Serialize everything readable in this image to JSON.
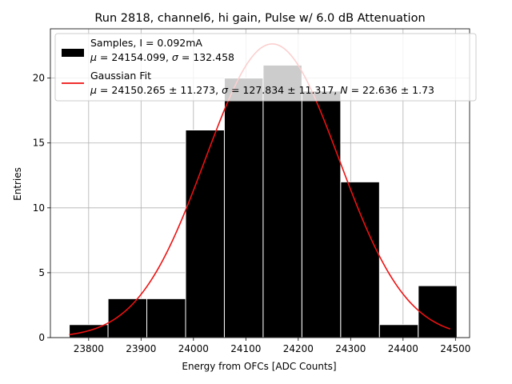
{
  "chart_data": {
    "type": "bar",
    "title": "Run 2818, channel6, hi gain, Pulse w/ 6.0 dB Attenuation",
    "xlabel": "Energy from OFCs [ADC Counts]",
    "ylabel": "Entries",
    "xlim": [
      23727,
      24527
    ],
    "ylim": [
      0,
      23.8
    ],
    "xticks": [
      23800,
      23900,
      24000,
      24100,
      24200,
      24300,
      24400,
      24500
    ],
    "yticks": [
      0,
      5,
      10,
      15,
      20
    ],
    "grid": true,
    "legend_position": "top-left",
    "histogram": {
      "bin_edges": [
        23763,
        23837,
        23911,
        23985,
        24059,
        24133,
        24207,
        24281,
        24355,
        24429,
        24503
      ],
      "counts": [
        1,
        3,
        3,
        16,
        20,
        21,
        19,
        12,
        1,
        4
      ],
      "color": "#000000",
      "edgecolor": "#ffffff",
      "legend_line1": "Samples, I = 0.092mA",
      "legend_line2_parts": [
        "μ",
        " = 24154.099, ",
        "σ",
        " = 132.458"
      ]
    },
    "fit": {
      "type": "gaussian",
      "mu": 24150.265,
      "sigma": 127.834,
      "N": 22.636,
      "x_range": [
        23763,
        24490
      ],
      "color": "#ee1111",
      "legend_line1": "Gaussian Fit",
      "legend_line2_parts": [
        "μ",
        " = 24150.265 ± 11.273, ",
        "σ",
        " = 127.834 ± 11.317, ",
        "N",
        " = 22.636 ± 1.73"
      ]
    }
  }
}
